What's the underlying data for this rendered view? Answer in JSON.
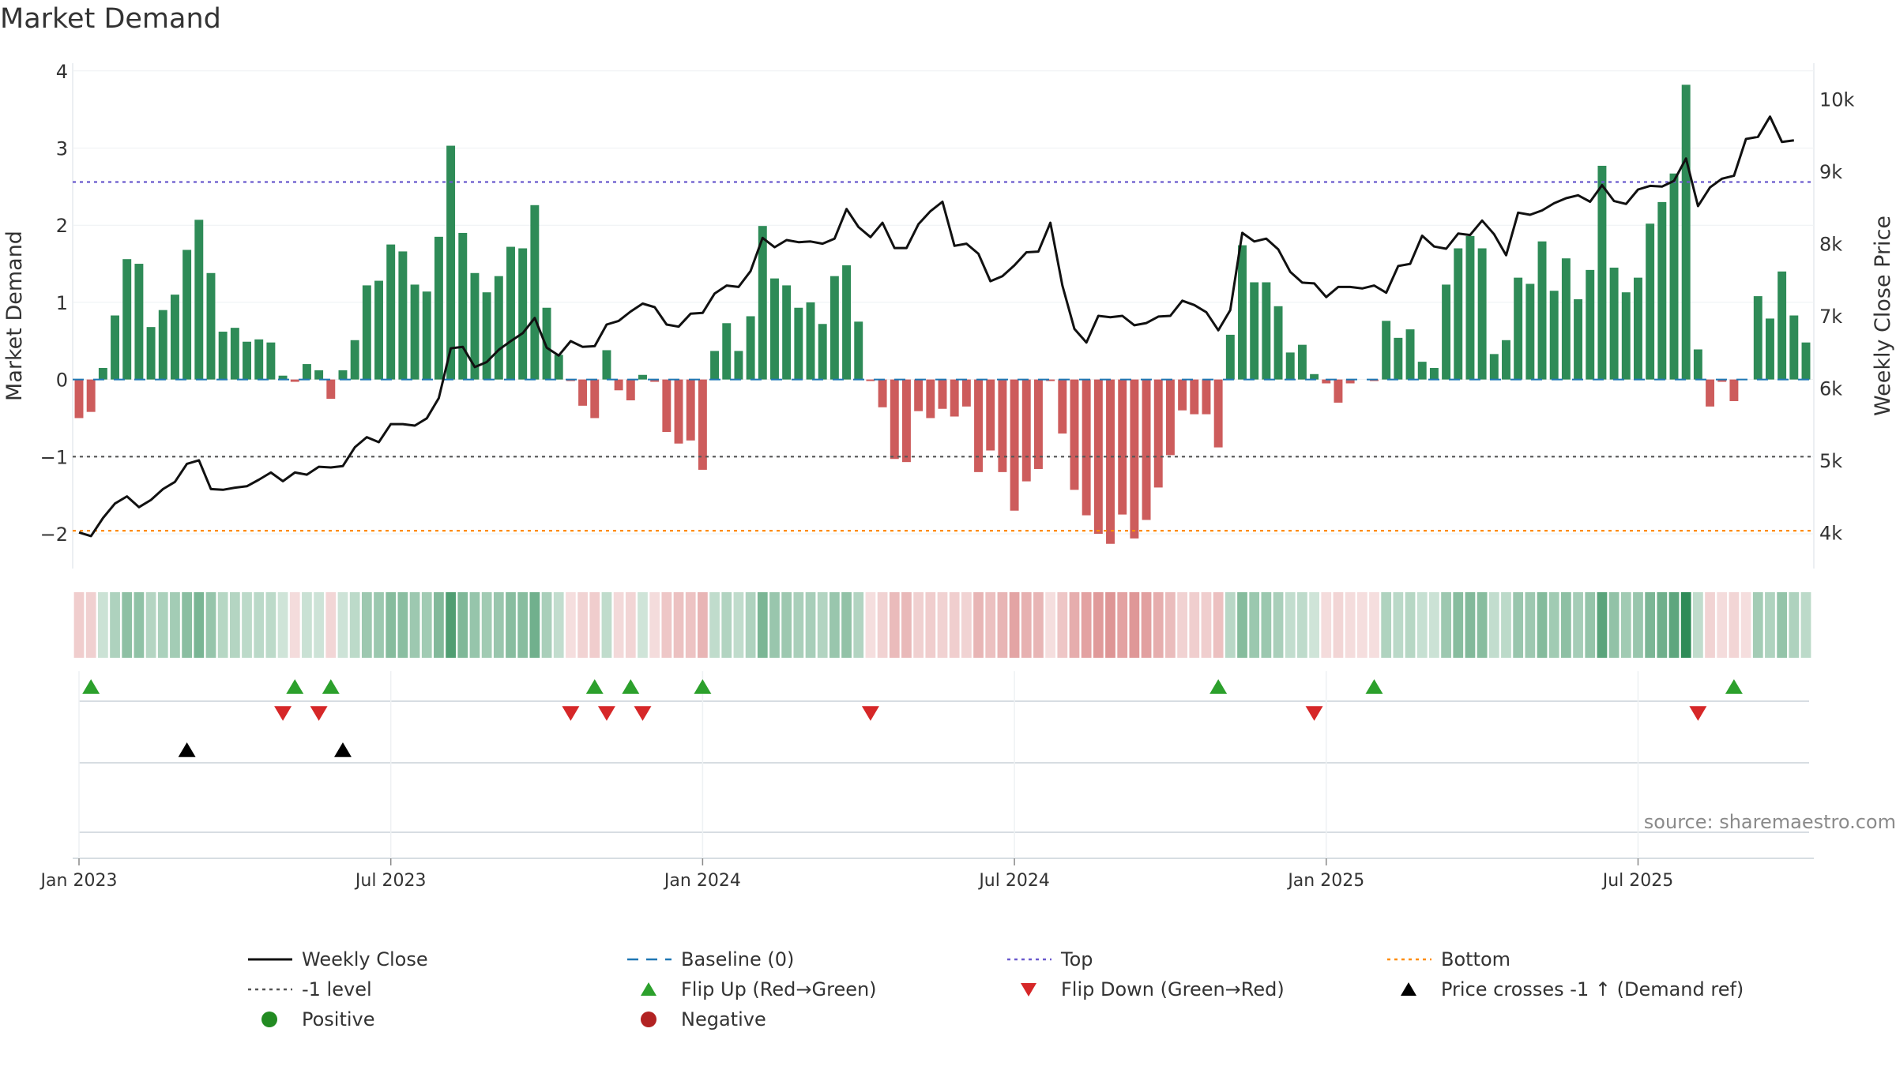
{
  "title": "Market Demand",
  "source": "source: sharemaestro.com",
  "colors": {
    "positive_bar": "#2e8b57",
    "negative_bar": "#cd5c5c",
    "price_line": "#111111",
    "baseline": "#1f77b4",
    "top_line": "#6a5acd",
    "bottom_line": "#ff8c00",
    "minus1_line": "#555555",
    "flip_up": "#2ca02c",
    "flip_down": "#d62728",
    "cross": "#000000",
    "positive_dot": "#228b22",
    "negative_dot": "#b22222"
  },
  "chart_data": {
    "type": "bar+line",
    "title": "Market Demand",
    "ylabel_left": "Market Demand",
    "ylabel_right": "Weekly Close Price",
    "ylim_left": [
      -2.45,
      4.1
    ],
    "ylim_right": [
      3500,
      10500
    ],
    "left_ticks": [
      4,
      3,
      2,
      1,
      0,
      -1,
      -2
    ],
    "left_tick_labels": [
      "4",
      "3",
      "2",
      "1",
      "0",
      "−1",
      "−2"
    ],
    "right_ticks": [
      10000,
      9000,
      8000,
      7000,
      6000,
      5000,
      4000
    ],
    "right_tick_labels": [
      "10k",
      "9k",
      "8k",
      "7k",
      "6k",
      "5k",
      "4k"
    ],
    "x_tick_labels": [
      "Jan 2023",
      "Jul 2023",
      "Jan 2024",
      "Jul 2024",
      "Jan 2025",
      "Jul 2025"
    ],
    "x_tick_weeks": [
      1,
      27,
      53,
      79,
      105,
      131
    ],
    "reference_levels": {
      "top": 2.56,
      "minus1": -1.0,
      "bottom": -1.96,
      "baseline": 0
    },
    "demand": [
      -0.5,
      -0.42,
      0.15,
      0.83,
      1.56,
      1.5,
      0.68,
      0.9,
      1.1,
      1.68,
      2.07,
      1.38,
      0.62,
      0.67,
      0.49,
      0.52,
      0.48,
      0.05,
      -0.03,
      0.2,
      0.12,
      -0.25,
      0.12,
      0.51,
      1.22,
      1.28,
      1.75,
      1.66,
      1.23,
      1.14,
      1.85,
      3.03,
      1.9,
      1.38,
      1.13,
      1.34,
      1.72,
      1.7,
      2.26,
      0.93,
      0.32,
      -0.02,
      -0.34,
      -0.5,
      0.38,
      -0.14,
      -0.27,
      0.06,
      -0.03,
      -0.68,
      -0.83,
      -0.79,
      -1.17,
      0.37,
      0.73,
      0.37,
      0.82,
      1.99,
      1.31,
      1.22,
      0.93,
      1.0,
      0.72,
      1.34,
      1.48,
      0.75,
      -0.02,
      -0.36,
      -1.03,
      -1.07,
      -0.41,
      -0.5,
      -0.38,
      -0.48,
      -0.35,
      -1.2,
      -0.92,
      -1.2,
      -1.7,
      -1.32,
      -1.16,
      -0.02,
      -0.7,
      -1.43,
      -1.76,
      -2.0,
      -2.13,
      -1.75,
      -2.06,
      -1.82,
      -1.4,
      -0.98,
      -0.4,
      -0.45,
      -0.45,
      -0.88,
      0.58,
      1.74,
      1.26,
      1.26,
      0.95,
      0.35,
      0.45,
      0.07,
      -0.05,
      -0.3,
      -0.05,
      0.0,
      -0.02,
      0.76,
      0.54,
      0.65,
      0.23,
      0.15,
      1.23,
      1.7,
      1.86,
      1.7,
      0.33,
      0.51,
      1.32,
      1.24,
      1.79,
      1.15,
      1.57,
      1.04,
      1.42,
      2.77,
      1.45,
      1.13,
      1.32,
      2.02,
      2.3,
      2.67,
      3.82,
      0.39,
      -0.35,
      -0.03,
      -0.28,
      0.0,
      1.08,
      0.79,
      1.4,
      0.83,
      0.48
    ],
    "price": [
      4000,
      3950,
      4200,
      4400,
      4500,
      4350,
      4450,
      4600,
      4700,
      4950,
      5000,
      4600,
      4590,
      4620,
      4640,
      4730,
      4830,
      4710,
      4830,
      4800,
      4910,
      4900,
      4920,
      5180,
      5320,
      5250,
      5500,
      5500,
      5480,
      5580,
      5860,
      6550,
      6570,
      6290,
      6360,
      6530,
      6650,
      6760,
      6970,
      6560,
      6450,
      6650,
      6570,
      6580,
      6880,
      6930,
      7060,
      7170,
      7120,
      6880,
      6850,
      7030,
      7040,
      7310,
      7420,
      7400,
      7620,
      8080,
      7950,
      8050,
      8020,
      8030,
      8000,
      8070,
      8480,
      8230,
      8090,
      8290,
      7940,
      7940,
      8270,
      8450,
      8580,
      7970,
      8000,
      7860,
      7480,
      7550,
      7700,
      7880,
      7890,
      8290,
      7420,
      6820,
      6630,
      7000,
      6980,
      7000,
      6870,
      6900,
      6990,
      7000,
      7210,
      7150,
      7050,
      6800,
      7080,
      8150,
      8030,
      8070,
      7920,
      7610,
      7460,
      7450,
      7260,
      7400,
      7400,
      7380,
      7420,
      7320,
      7690,
      7720,
      8110,
      7960,
      7930,
      8140,
      8120,
      8320,
      8130,
      7840,
      8430,
      8400,
      8460,
      8560,
      8630,
      8670,
      8580,
      8810,
      8590,
      8550,
      8750,
      8800,
      8790,
      8870,
      9180,
      8520,
      8780,
      8900,
      8940,
      9450,
      9480,
      9760,
      9410,
      9430
    ]
  },
  "heat_strip": {
    "label": "demand color strip"
  },
  "signal_rows": {
    "flip_up_weeks": [
      2,
      19,
      22,
      44,
      47,
      53,
      96,
      109,
      139
    ],
    "flip_down_weeks": [
      18,
      21,
      42,
      45,
      48,
      67,
      104,
      136
    ],
    "cross_weeks": [
      10,
      23
    ]
  },
  "legend": [
    {
      "label": "Weekly Close",
      "symbol": "solid-line",
      "color_key": "price_line"
    },
    {
      "label": "Baseline (0)",
      "symbol": "dashed-line",
      "color_key": "baseline"
    },
    {
      "label": "Top",
      "symbol": "dotted-line",
      "color_key": "top_line"
    },
    {
      "label": "Bottom",
      "symbol": "dotted-line",
      "color_key": "bottom_line"
    },
    {
      "label": "-1 level",
      "symbol": "dotted-line",
      "color_key": "minus1_line"
    },
    {
      "label": "Flip Up (Red→Green)",
      "symbol": "triangle-up",
      "color_key": "flip_up"
    },
    {
      "label": "Flip Down (Green→Red)",
      "symbol": "triangle-down",
      "color_key": "flip_down"
    },
    {
      "label": "Price crosses -1 ↑ (Demand ref)",
      "symbol": "triangle-up",
      "color_key": "cross"
    },
    {
      "label": "Positive",
      "symbol": "dot",
      "color_key": "positive_dot"
    },
    {
      "label": "Negative",
      "symbol": "dot",
      "color_key": "negative_dot"
    }
  ]
}
